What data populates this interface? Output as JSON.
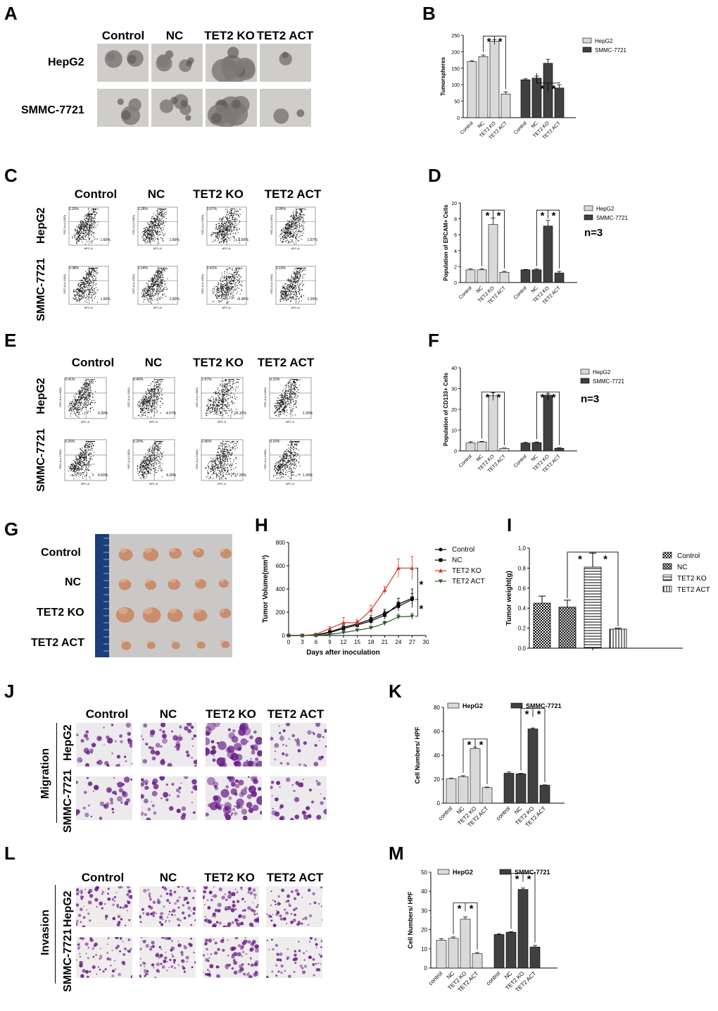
{
  "colors": {
    "light": "#d9d9d9",
    "dark": "#404040",
    "red": "#d23a2a",
    "green": "#2f5a2f",
    "purple": "#6a1f8a",
    "ruler": "#1b3f7a"
  },
  "panels": {
    "A": {
      "letter": "A",
      "cols": [
        "Control",
        "NC",
        "TET2 KO",
        "TET2 ACT"
      ],
      "rows": [
        "HepG2",
        "SMMC-7721"
      ]
    },
    "B": {
      "letter": "B"
    },
    "C": {
      "letter": "C",
      "cols": [
        "Control",
        "NC",
        "TET2 KO",
        "TET2 ACT"
      ],
      "rows": [
        "HepG2",
        "SMMC-7721"
      ],
      "flow": {
        "xlab": "APC-A",
        "ylab": "SSC-A (x 1000)",
        "pct_top": [
          [
            "0.25%",
            "0.26%",
            "0.67%",
            "0.06%"
          ],
          [
            "0.08%",
            "0.24%",
            "0.41%",
            "0.10%"
          ]
        ],
        "pct_bottom": [
          [
            "1.60%",
            "1.60%",
            "6.50%",
            "1.57%"
          ],
          [
            "1.50%",
            "1.60%",
            "6.90%",
            "1.20%"
          ]
        ]
      }
    },
    "D": {
      "letter": "D",
      "note": "n=3"
    },
    "E": {
      "letter": "E",
      "cols": [
        "Control",
        "NC",
        "TET2 KO",
        "TET2 ACT"
      ],
      "rows": [
        "HepG2",
        "SMMC-7721"
      ],
      "flow": {
        "xlab": "APC-A",
        "ylab": "SSC-A (x 1000)",
        "pct_top": [
          [
            "0.41%",
            "0.40%",
            "2.97%",
            "0.16%"
          ],
          [
            "0.25%",
            "0.20%",
            "2.96%",
            "0.16%"
          ]
        ],
        "pct_bottom": [
          [
            "4.30%",
            "4.57%",
            "26.10%",
            "1.30%"
          ],
          [
            "4.50%",
            "4.20%",
            "27.20%",
            "1.30%"
          ]
        ]
      }
    },
    "F": {
      "letter": "F",
      "note": "n=3"
    },
    "G": {
      "letter": "G",
      "rows": [
        "Control",
        "NC",
        "TET2 KO",
        "TET2 ACT"
      ]
    },
    "H": {
      "letter": "H"
    },
    "I": {
      "letter": "I"
    },
    "J": {
      "letter": "J",
      "cols": [
        "Control",
        "NC",
        "TET2 KO",
        "TET2 ACT"
      ],
      "rows": [
        "HepG2",
        "SMMC-7721"
      ],
      "group": "Migration"
    },
    "K": {
      "letter": "K"
    },
    "L": {
      "letter": "L",
      "cols": [
        "Control",
        "NC",
        "TET2 KO",
        "TET2 ACT"
      ],
      "rows": [
        "HepG2",
        "SMMC-7721"
      ],
      "group": "Invasion"
    },
    "M": {
      "letter": "M"
    }
  },
  "chart_data": [
    {
      "id": "B",
      "type": "bar",
      "categories": [
        "Control",
        "NC",
        "TET2 KO",
        "TET2 ACT"
      ],
      "ylabel": "Tumorspheres",
      "ylim": [
        0,
        250
      ],
      "yticks": [
        0,
        50,
        100,
        150,
        200,
        250
      ],
      "legend": "right",
      "series": [
        {
          "name": "HepG2",
          "color": "light",
          "values": [
            170,
            185,
            232,
            72
          ],
          "errors": [
            3,
            5,
            5,
            6
          ]
        },
        {
          "name": "SMMC-7721",
          "color": "dark",
          "values": [
            115,
            120,
            165,
            90
          ],
          "errors": [
            3,
            6,
            12,
            10
          ]
        }
      ],
      "sig": "*"
    },
    {
      "id": "D",
      "type": "bar",
      "categories": [
        "Control",
        "NC",
        "TET2 KO",
        "TET2 ACT"
      ],
      "ylabel": "Population of EPCAM+ Cells",
      "ylim": [
        0,
        10
      ],
      "yticks": [
        0,
        2,
        4,
        6,
        8,
        10
      ],
      "legend": "right",
      "series": [
        {
          "name": "HepG2",
          "color": "light",
          "values": [
            1.6,
            1.6,
            7.3,
            1.3
          ],
          "errors": [
            0.1,
            0.1,
            0.8,
            0.1
          ]
        },
        {
          "name": "SMMC-7721",
          "color": "dark",
          "values": [
            1.6,
            1.6,
            7.1,
            1.2
          ],
          "errors": [
            0.05,
            0.1,
            0.7,
            0.2
          ]
        }
      ],
      "sig": "*"
    },
    {
      "id": "F",
      "type": "bar",
      "categories": [
        "Control",
        "NC",
        "TET2 KO",
        "TET2 ACT"
      ],
      "ylabel": "Population of CD133+ Cells",
      "ylim": [
        0,
        40
      ],
      "yticks": [
        0,
        10,
        20,
        30,
        40
      ],
      "legend": "right",
      "series": [
        {
          "name": "HepG2",
          "color": "light",
          "values": [
            3.8,
            4.3,
            26.5,
            1.2
          ],
          "errors": [
            0.6,
            0.3,
            1.5,
            0.2
          ]
        },
        {
          "name": "SMMC-7721",
          "color": "dark",
          "values": [
            3.8,
            4.0,
            26.8,
            1.3
          ],
          "errors": [
            0.3,
            0.3,
            0.7,
            0.2
          ]
        }
      ],
      "sig": "*"
    },
    {
      "id": "H",
      "type": "line",
      "xlabel": "Days after inoculation",
      "ylabel": "Tumor Volume(mm³)",
      "x": [
        0,
        3,
        6,
        9,
        12,
        15,
        18,
        21,
        24,
        27
      ],
      "xlim": [
        0,
        30
      ],
      "xticks": [
        0,
        3,
        6,
        9,
        12,
        15,
        18,
        21,
        24,
        27,
        30
      ],
      "ylim": [
        0,
        800
      ],
      "yticks": [
        0,
        200,
        400,
        600,
        800
      ],
      "legend": "right",
      "series": [
        {
          "name": "Control",
          "color": "#000000",
          "marker": "circle",
          "values": [
            0,
            0,
            5,
            30,
            70,
            100,
            140,
            190,
            250,
            310
          ],
          "errors": [
            0,
            0,
            5,
            10,
            20,
            25,
            30,
            35,
            40,
            50
          ]
        },
        {
          "name": "NC",
          "color": "#000000",
          "marker": "square",
          "values": [
            0,
            0,
            5,
            25,
            60,
            90,
            125,
            175,
            270,
            320
          ],
          "errors": [
            0,
            0,
            5,
            10,
            20,
            25,
            30,
            35,
            50,
            80
          ]
        },
        {
          "name": "TET2 KO",
          "color": "red",
          "marker": "triangle",
          "values": [
            0,
            0,
            10,
            60,
            110,
            110,
            220,
            390,
            580,
            580
          ],
          "errors": [
            0,
            0,
            5,
            15,
            45,
            30,
            40,
            30,
            80,
            100
          ]
        },
        {
          "name": "TET2 ACT",
          "color": "green",
          "marker": "tri-down",
          "values": [
            0,
            0,
            0,
            10,
            25,
            45,
            65,
            105,
            160,
            165
          ],
          "errors": [
            0,
            0,
            0,
            5,
            8,
            10,
            15,
            20,
            25,
            25
          ]
        }
      ],
      "sig": "*"
    },
    {
      "id": "I",
      "type": "bar",
      "categories": [
        "Control",
        "NC",
        "TET2 KO",
        "TET2 ACT"
      ],
      "ylabel": "Tumor weight(g)",
      "ylim": [
        0,
        1.0
      ],
      "yticks": [
        0.0,
        0.2,
        0.4,
        0.6,
        0.8,
        1.0
      ],
      "legend": "right",
      "values": [
        0.45,
        0.41,
        0.81,
        0.19
      ],
      "errors": [
        0.07,
        0.07,
        0.14,
        0.01
      ],
      "patterns": [
        "check",
        "xcheck",
        "hstripe",
        "vstripe"
      ],
      "sig": "*"
    },
    {
      "id": "K",
      "type": "bar",
      "categories": [
        "control",
        "NC",
        "TET2 KO",
        "TET2 ACT"
      ],
      "ylabel": "Cell Numbers/ HPF",
      "ylim": [
        0,
        80
      ],
      "yticks": [
        0,
        20,
        40,
        60,
        80
      ],
      "legend": "top",
      "series": [
        {
          "name": "HepG2",
          "color": "light",
          "values": [
            20.5,
            22,
            45.5,
            13
          ],
          "errors": [
            0.3,
            1,
            1.2,
            0.5
          ]
        },
        {
          "name": "SMMC-7721",
          "color": "dark",
          "values": [
            25,
            24.5,
            62,
            15
          ],
          "errors": [
            1,
            0.4,
            0.8,
            0.3
          ]
        }
      ],
      "sig": "*"
    },
    {
      "id": "M",
      "type": "bar",
      "categories": [
        "control",
        "NC",
        "TET2 KO",
        "TET2 ACT"
      ],
      "ylabel": "Cell Numbers/ HPF",
      "ylim": [
        0,
        50
      ],
      "yticks": [
        0,
        10,
        20,
        30,
        40,
        50
      ],
      "legend": "top",
      "series": [
        {
          "name": "HepG2",
          "color": "light",
          "values": [
            14.5,
            15.5,
            25.5,
            7.5
          ],
          "errors": [
            0.8,
            0.7,
            1.2,
            0.6
          ]
        },
        {
          "name": "SMMC-7721",
          "color": "dark",
          "values": [
            17.5,
            18.7,
            41,
            11
          ],
          "errors": [
            0.3,
            0.3,
            0.8,
            0.8
          ]
        }
      ],
      "sig": "*"
    }
  ]
}
